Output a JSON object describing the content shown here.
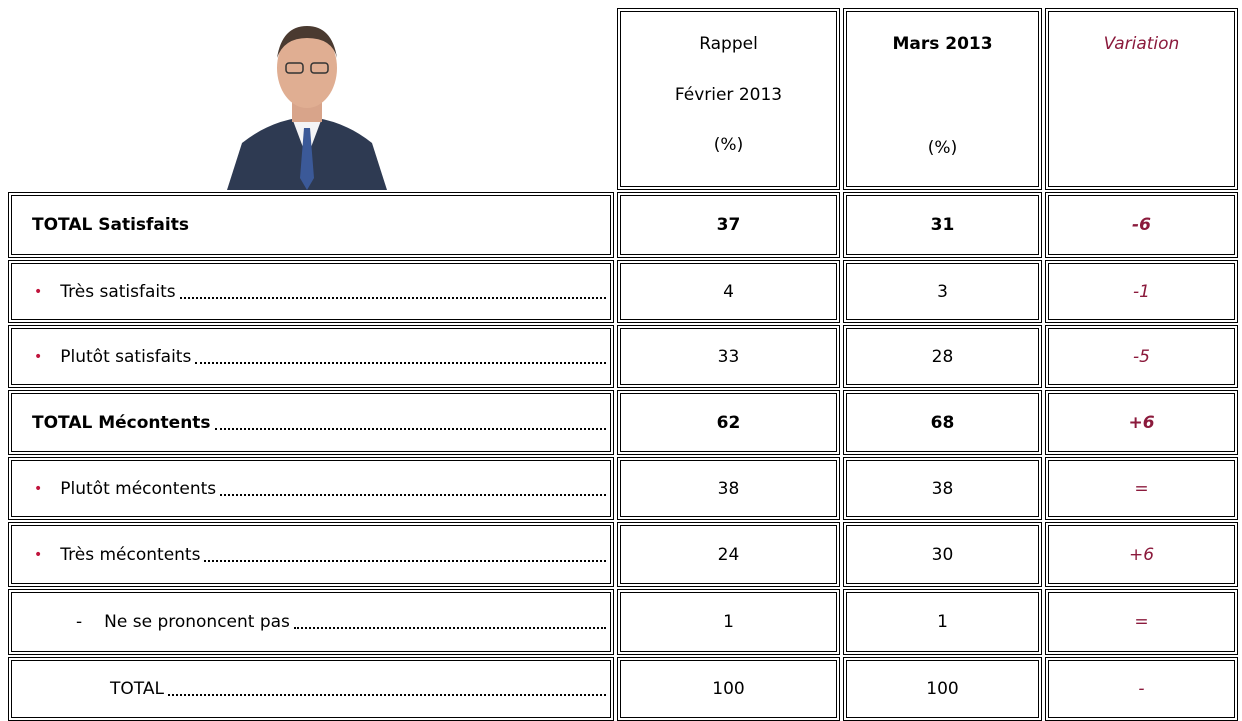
{
  "header": {
    "columns": [
      {
        "lines": [
          "Rappel",
          "Février 2013",
          "(%)"
        ]
      },
      {
        "lines": [
          "Mars 2013",
          "(%)"
        ]
      },
      {
        "lines": [
          "Variation"
        ]
      }
    ]
  },
  "table": {
    "rows": [
      {
        "label": "TOTAL Satisfaits",
        "bold": true,
        "values": [
          37,
          31
        ],
        "variation": "-6"
      },
      {
        "marker": "•",
        "label": "Très satisfaits",
        "values": [
          4,
          3
        ],
        "variation": "-1"
      },
      {
        "marker": "•",
        "label": "Plutôt satisfaits",
        "values": [
          33,
          28
        ],
        "variation": "-5"
      },
      {
        "label": "TOTAL Mécontents",
        "bold": true,
        "values": [
          62,
          68
        ],
        "variation": "+6"
      },
      {
        "marker": "•",
        "label": "Plutôt mécontents",
        "values": [
          38,
          38
        ],
        "variation": "="
      },
      {
        "marker": "•",
        "label": "Très mécontents",
        "values": [
          24,
          30
        ],
        "variation": "+6"
      },
      {
        "marker": "-",
        "label": "Ne se prononcent pas",
        "values": [
          1,
          1
        ],
        "variation": "="
      },
      {
        "label": "TOTAL",
        "values": [
          100,
          100
        ],
        "variation": "-"
      }
    ]
  }
}
